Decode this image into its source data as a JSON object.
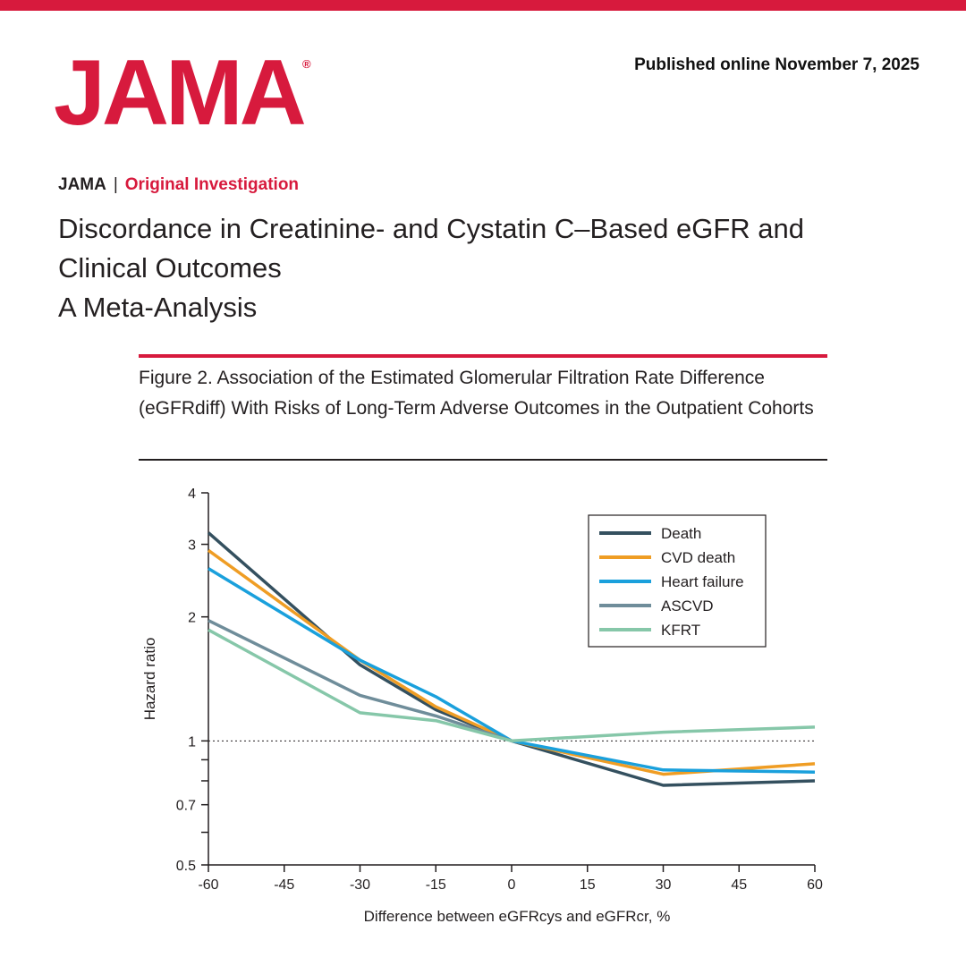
{
  "header": {
    "logo": "JAMA",
    "logo_mark": "®",
    "published": "Published online November 7, 2025"
  },
  "article": {
    "journal": "JAMA",
    "separator": "|",
    "section": "Original Investigation",
    "title": "Discordance in Creatinine- and Cystatin C–Based eGFR and Clinical Outcomes",
    "subtitle": "A Meta-Analysis"
  },
  "figure": {
    "caption": "Figure 2. Association of the Estimated Glomerular Filtration Rate Difference (eGFRdiff) With Risks of Long-Term Adverse Outcomes in the Outpatient Cohorts"
  },
  "colors": {
    "brand_red": "#d71a3d"
  },
  "chart_data": {
    "type": "line",
    "title": "",
    "xlabel": "Difference between eGFRcys and eGFRcr, %",
    "ylabel": "Hazard ratio",
    "y_scale": "log",
    "xlim": [
      -60,
      60
    ],
    "ylim": [
      0.5,
      4
    ],
    "x_ticks": [
      "-60",
      "-45",
      "-30",
      "-15",
      "0",
      "15",
      "30",
      "45",
      "60"
    ],
    "y_ticks": [
      "0.5",
      "0.7",
      "1",
      "2",
      "3",
      "4"
    ],
    "y_minor_ticks": [
      0.6,
      0.8,
      0.9
    ],
    "reference_line": 1,
    "legend_position": "top-right",
    "grid": false,
    "series": [
      {
        "name": "Death",
        "color": "#34505f",
        "points": [
          [
            -60,
            3.2
          ],
          [
            -30,
            1.53
          ],
          [
            -15,
            1.19
          ],
          [
            0,
            1.0
          ],
          [
            30,
            0.78
          ],
          [
            60,
            0.8
          ]
        ]
      },
      {
        "name": "CVD death",
        "color": "#ef9d24",
        "points": [
          [
            -60,
            2.9
          ],
          [
            -30,
            1.57
          ],
          [
            -15,
            1.21
          ],
          [
            0,
            1.0
          ],
          [
            30,
            0.83
          ],
          [
            60,
            0.88
          ]
        ]
      },
      {
        "name": "Heart failure",
        "color": "#1aa0dc",
        "points": [
          [
            -60,
            2.62
          ],
          [
            -30,
            1.57
          ],
          [
            -15,
            1.28
          ],
          [
            0,
            1.0
          ],
          [
            30,
            0.85
          ],
          [
            60,
            0.84
          ]
        ]
      },
      {
        "name": "ASCVD",
        "color": "#6f8d9a",
        "points": [
          [
            -60,
            1.96
          ],
          [
            -30,
            1.29
          ],
          [
            -15,
            1.15
          ],
          [
            0,
            1.0
          ]
        ]
      },
      {
        "name": "KFRT",
        "color": "#86c7a9",
        "points": [
          [
            -60,
            1.86
          ],
          [
            -30,
            1.17
          ],
          [
            -15,
            1.12
          ],
          [
            0,
            1.0
          ],
          [
            30,
            1.05
          ],
          [
            60,
            1.08
          ]
        ]
      }
    ]
  }
}
